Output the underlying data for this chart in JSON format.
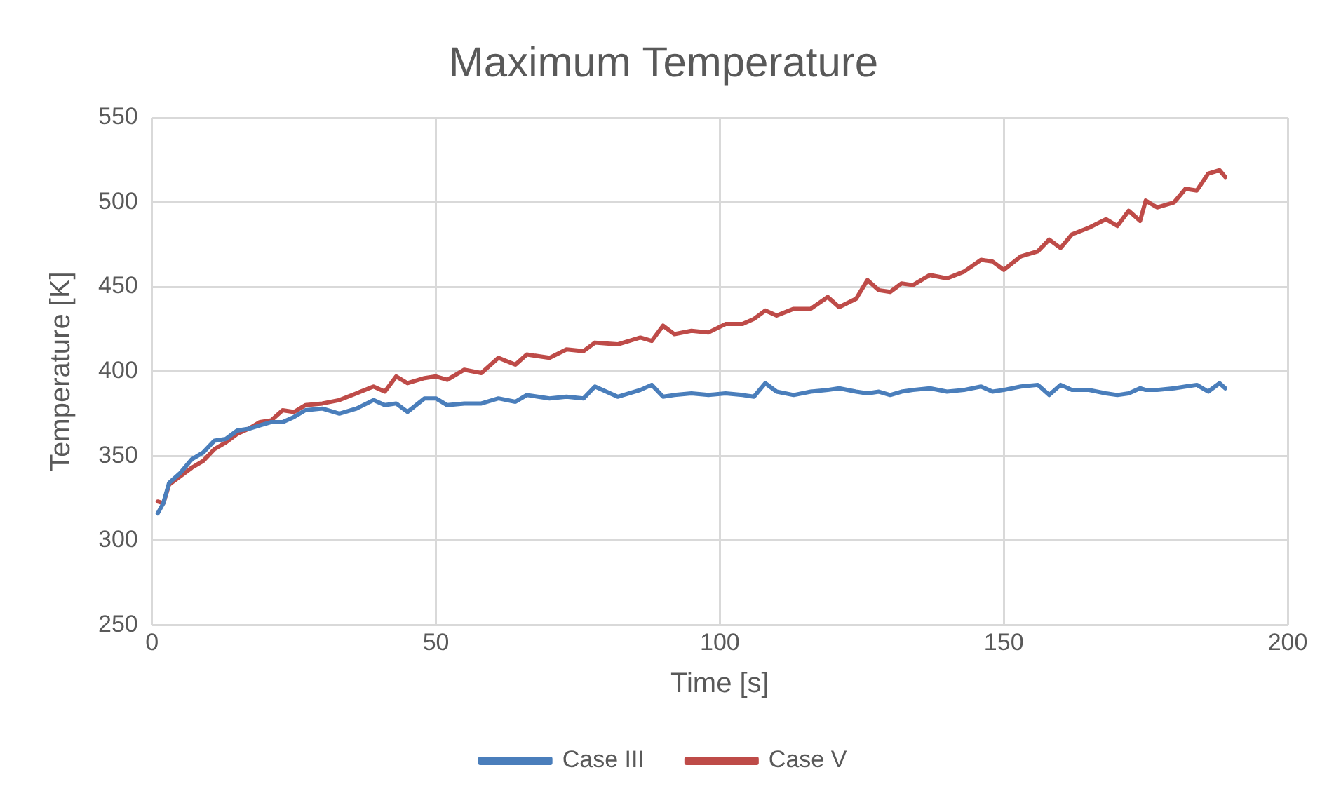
{
  "chart_data": {
    "type": "line",
    "title": "Maximum Temperature",
    "xlabel": "Time [s]",
    "ylabel": "Temperature [K]",
    "x": [
      1,
      2,
      3,
      5,
      7,
      9,
      11,
      13,
      15,
      17,
      19,
      21,
      23,
      25,
      27,
      30,
      33,
      36,
      39,
      41,
      43,
      45,
      48,
      50,
      52,
      55,
      58,
      61,
      64,
      66,
      70,
      73,
      76,
      78,
      82,
      86,
      88,
      90,
      92,
      95,
      98,
      101,
      104,
      106,
      108,
      110,
      113,
      116,
      119,
      121,
      124,
      126,
      128,
      130,
      132,
      134,
      137,
      140,
      143,
      146,
      148,
      150,
      153,
      156,
      158,
      160,
      162,
      165,
      168,
      170,
      172,
      174,
      175,
      177,
      180,
      182,
      184,
      186,
      188,
      189
    ],
    "series": [
      {
        "name": "Case III",
        "color": "#4a7ebb",
        "values": [
          316,
          322,
          334,
          340,
          348,
          352,
          359,
          360,
          365,
          366,
          368,
          370,
          370,
          373,
          377,
          378,
          375,
          378,
          383,
          380,
          381,
          376,
          384,
          384,
          380,
          381,
          381,
          384,
          382,
          386,
          384,
          385,
          384,
          391,
          385,
          389,
          392,
          385,
          386,
          387,
          386,
          387,
          386,
          385,
          393,
          388,
          386,
          388,
          389,
          390,
          388,
          387,
          388,
          386,
          388,
          389,
          390,
          388,
          389,
          391,
          388,
          389,
          391,
          392,
          386,
          392,
          389,
          389,
          387,
          386,
          387,
          390,
          389,
          389,
          390,
          391,
          392,
          388,
          393,
          390
        ]
      },
      {
        "name": "Case V",
        "color": "#be4b48",
        "values": [
          323,
          322,
          333,
          338,
          343,
          347,
          354,
          358,
          363,
          366,
          370,
          371,
          377,
          376,
          380,
          381,
          383,
          387,
          391,
          388,
          397,
          393,
          396,
          397,
          395,
          401,
          399,
          408,
          404,
          410,
          408,
          413,
          412,
          417,
          416,
          420,
          418,
          427,
          422,
          424,
          423,
          428,
          428,
          431,
          436,
          433,
          437,
          437,
          444,
          438,
          443,
          454,
          448,
          447,
          452,
          451,
          457,
          455,
          459,
          466,
          465,
          460,
          468,
          471,
          478,
          473,
          481,
          485,
          490,
          486,
          495,
          489,
          501,
          497,
          500,
          508,
          507,
          517,
          519,
          515
        ]
      }
    ],
    "xlim": [
      0,
      200
    ],
    "xticks": [
      0,
      50,
      100,
      150,
      200
    ],
    "ylim": [
      250,
      550
    ],
    "yticks": [
      250,
      300,
      350,
      400,
      450,
      500,
      550
    ],
    "grid": true,
    "legend": "bottom",
    "marker": "none",
    "line_style": "solid"
  }
}
